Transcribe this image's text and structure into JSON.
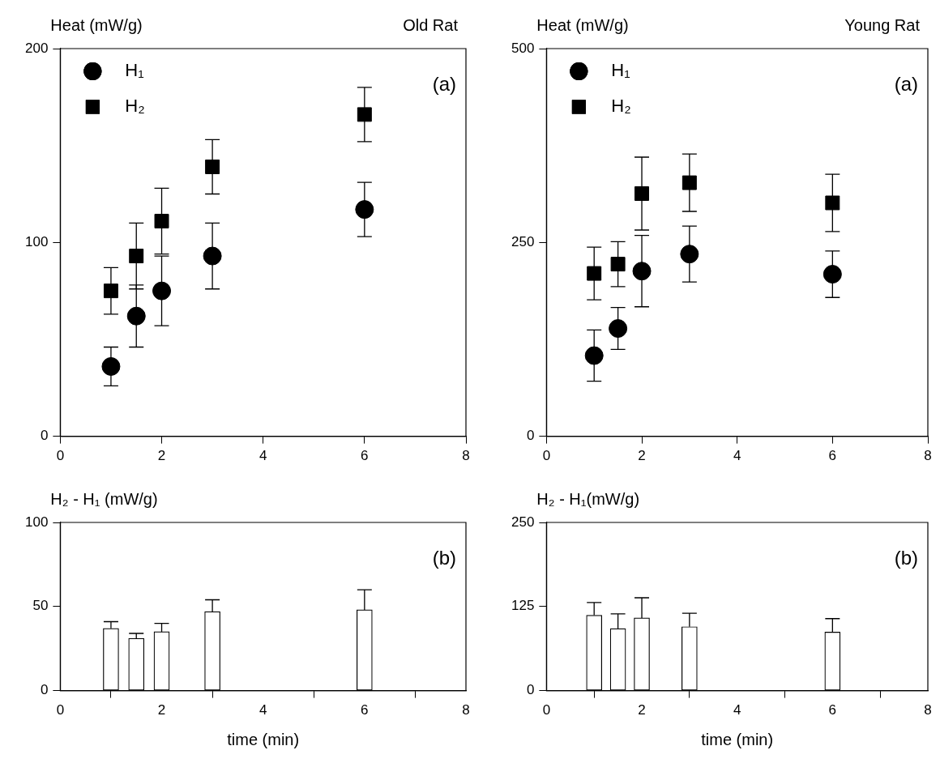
{
  "chart_data": [
    {
      "type": "scatter",
      "title": "Old Rat",
      "ylabel": "Heat (mW/g)",
      "annotations": [
        "(a)"
      ],
      "x": [
        1,
        1.5,
        2,
        3,
        6
      ],
      "xlim": [
        0,
        8
      ],
      "xticks": [
        0,
        2,
        4,
        6,
        8
      ],
      "ylim": [
        0,
        200
      ],
      "yticks": [
        0,
        100,
        200
      ],
      "legend": "top left",
      "series": [
        {
          "name": "H₁",
          "color": "#000000",
          "marker": "circle",
          "values": [
            36,
            62,
            75,
            93,
            117
          ],
          "errors": [
            10,
            16,
            18,
            17,
            14
          ]
        },
        {
          "name": "H₂",
          "color": "#000000",
          "marker": "square",
          "values": [
            75,
            93,
            111,
            139,
            166
          ],
          "errors": [
            12,
            17,
            17,
            14,
            14
          ]
        }
      ]
    },
    {
      "type": "scatter",
      "title": "Young Rat",
      "ylabel": "Heat (mW/g)",
      "annotations": [
        "(a)"
      ],
      "x": [
        1,
        1.5,
        2,
        3,
        6
      ],
      "xlim": [
        0,
        8
      ],
      "xticks": [
        0,
        2,
        4,
        6,
        8
      ],
      "ylim": [
        0,
        500
      ],
      "yticks": [
        0,
        250,
        500
      ],
      "legend": "top left",
      "series": [
        {
          "name": "H₁",
          "color": "#000000",
          "marker": "circle",
          "values": [
            104,
            139,
            213,
            235,
            209
          ],
          "errors": [
            33,
            27,
            46,
            36,
            30
          ]
        },
        {
          "name": "H₂",
          "color": "#000000",
          "marker": "square",
          "values": [
            210,
            222,
            313,
            327,
            301
          ],
          "errors": [
            34,
            29,
            47,
            37,
            37
          ]
        }
      ]
    },
    {
      "type": "bar",
      "ylabel": "H₂ - H₁ (mW/g)",
      "xlabel": "time (min)",
      "annotations": [
        "(b)"
      ],
      "x": [
        1,
        1.5,
        2,
        3,
        6
      ],
      "xlim": [
        0,
        8
      ],
      "xticks": [
        0,
        2,
        4,
        6,
        8
      ],
      "ylim": [
        0,
        100
      ],
      "yticks": [
        0,
        50,
        100
      ],
      "series": [
        {
          "color": "#ffffff",
          "values": [
            37,
            31,
            35,
            47,
            48
          ],
          "errors": [
            [
              37,
              41
            ],
            [
              31,
              34
            ],
            [
              35,
              40
            ],
            [
              47,
              54
            ],
            [
              48,
              60
            ]
          ]
        }
      ]
    },
    {
      "type": "bar",
      "ylabel": "H₂ - H₁(mW/g)",
      "xlabel": "time (min)",
      "annotations": [
        "(b)"
      ],
      "x": [
        1,
        1.5,
        2,
        3,
        6
      ],
      "xlim": [
        0,
        8
      ],
      "xticks": [
        0,
        2,
        4,
        6,
        8
      ],
      "ylim": [
        0,
        250
      ],
      "yticks": [
        0,
        125,
        250
      ],
      "series": [
        {
          "color": "#ffffff",
          "values": [
            112,
            92,
            108,
            95,
            87
          ],
          "errors": [
            [
              112,
              131
            ],
            [
              92,
              114
            ],
            [
              108,
              138
            ],
            [
              95,
              115
            ],
            [
              87,
              107
            ]
          ]
        }
      ]
    }
  ]
}
